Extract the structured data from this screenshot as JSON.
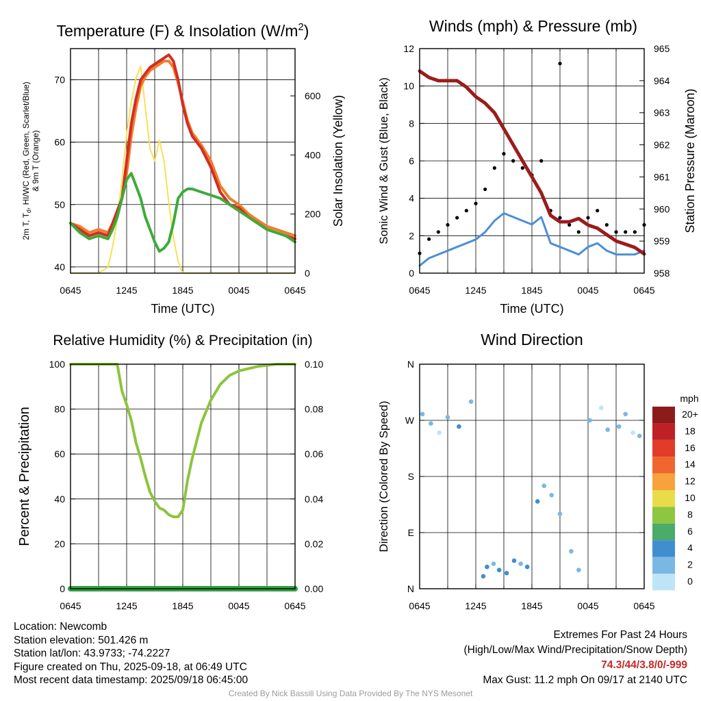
{
  "chart_data": [
    {
      "type": "line",
      "title": "Temperature (F) & Insolation (W/m²)",
      "title_parts": {
        "main": "Temperature (F) & Insolation (W/m",
        "sup": "2",
        "end": ")"
      },
      "xlabel": "Time (UTC)",
      "ylabel": "2m T, Td, HI/WC (Red, Green, Scarlet/Blue) & 9m T (Orange)",
      "ylabel_parts": {
        "line1_a": "2m T, T",
        "line1_sub": "d",
        "line1_b": ", HI/WC (Red, Green, Scarlet/Blue)",
        "line2": "& 9m T (Orange)"
      },
      "ylabel_right": "Solar Insolation (Yellow)",
      "x_ticks": [
        "0645",
        "1245",
        "1845",
        "0045",
        "0645"
      ],
      "y_ticks": [
        "40",
        "50",
        "60",
        "70"
      ],
      "y_ticks_right": [
        "0",
        "200",
        "400",
        "600"
      ],
      "ylim": [
        39,
        75
      ],
      "ylim_right": [
        0,
        760
      ],
      "grid": true,
      "x": [
        0,
        1,
        2,
        3,
        4,
        4.5,
        5,
        5.5,
        6,
        6.5,
        7,
        7.5,
        8,
        8.5,
        9,
        9.5,
        10,
        10.5,
        11,
        11.5,
        12,
        12.5,
        13,
        14,
        15,
        16,
        17,
        18,
        19,
        20,
        21,
        22,
        23,
        24
      ],
      "series": [
        {
          "color": "#d42d22",
          "values": [
            47,
            46,
            45,
            45.5,
            45,
            47,
            49,
            51,
            57,
            63,
            67,
            70,
            71,
            72,
            72.5,
            73,
            73.5,
            74,
            73,
            70,
            66,
            63,
            61,
            59,
            56,
            52,
            50,
            49.5,
            48,
            47,
            46,
            45.5,
            45,
            44.5
          ]
        },
        {
          "color": "#f07d2c",
          "values": [
            47,
            46.5,
            45.5,
            46,
            45.5,
            47,
            48.5,
            51,
            55,
            61,
            65.5,
            69,
            70.5,
            71.5,
            72,
            72.5,
            73,
            73,
            72,
            69.5,
            66.5,
            63.5,
            61.5,
            59.5,
            57,
            53,
            51,
            50,
            48.5,
            47.5,
            46.5,
            46,
            45.5,
            45
          ]
        },
        {
          "color": "#3cab3a",
          "values": [
            47,
            45.5,
            44.5,
            45,
            44.5,
            46,
            48,
            51,
            54,
            55,
            53,
            51,
            48,
            46,
            44,
            42.5,
            43,
            44,
            47,
            51,
            52,
            52.5,
            52.5,
            52,
            51.5,
            51,
            50,
            49,
            48,
            47,
            46,
            45.5,
            45,
            44
          ]
        },
        {
          "color": "#f7e154",
          "values": [
            0,
            0,
            0,
            0,
            20,
            90,
            180,
            320,
            470,
            580,
            660,
            700,
            560,
            420,
            380,
            450,
            380,
            240,
            120,
            40,
            0,
            0,
            0,
            0,
            0,
            0,
            0,
            0,
            0,
            0,
            0,
            0,
            0,
            0
          ],
          "axis": "right"
        }
      ]
    },
    {
      "type": "line",
      "title": "Winds (mph) & Pressure (mb)",
      "xlabel": "Time (UTC)",
      "ylabel": "Sonic Wind & Gust (Blue, Black)",
      "ylabel_right": "Station Pressure (Maroon)",
      "x_ticks": [
        "0645",
        "1245",
        "1845",
        "0045",
        "0645"
      ],
      "y_ticks": [
        "0",
        "2",
        "4",
        "6",
        "8",
        "10",
        "12"
      ],
      "y_ticks_right": [
        "958",
        "959",
        "960",
        "961",
        "962",
        "963",
        "964",
        "965"
      ],
      "ylim": [
        0,
        12
      ],
      "ylim_right": [
        958,
        965
      ],
      "grid": true,
      "max_gust": 11.2,
      "x": [
        0,
        1,
        2,
        3,
        4,
        5,
        6,
        7,
        8,
        9,
        10,
        11,
        12,
        13,
        14,
        15,
        16,
        17,
        18,
        19,
        20,
        21,
        22,
        23,
        24
      ],
      "series": [
        {
          "color": "#4a90d4",
          "values": [
            0.4,
            0.8,
            1.0,
            1.2,
            1.4,
            1.6,
            1.8,
            2.2,
            2.8,
            3.2,
            3.0,
            2.8,
            2.6,
            3.0,
            1.6,
            1.4,
            1.2,
            1.0,
            1.4,
            1.6,
            1.2,
            1.0,
            1.0,
            1.0,
            1.2
          ]
        },
        {
          "color": "#9b1c1c",
          "values": [
            964.3,
            964.1,
            964.0,
            964.0,
            964.0,
            963.8,
            963.5,
            963.3,
            963.0,
            962.5,
            962.0,
            961.5,
            961.0,
            960.5,
            959.8,
            959.6,
            959.6,
            959.7,
            959.5,
            959.4,
            959.2,
            959.0,
            958.9,
            958.8,
            958.6
          ],
          "axis": "right"
        }
      ]
    },
    {
      "type": "line",
      "title": "Relative Humidity (%) & Precipitation (in)",
      "ylabel": "Percent & Precipitation",
      "x_ticks": [
        "0645",
        "1245",
        "1845",
        "0045",
        "0645"
      ],
      "y_ticks": [
        "0",
        "20",
        "40",
        "60",
        "80",
        "100"
      ],
      "y_ticks_right": [
        "0.00",
        "0.02",
        "0.04",
        "0.06",
        "0.08",
        "0.10"
      ],
      "ylim": [
        0,
        100
      ],
      "ylim_right": [
        0,
        0.1
      ],
      "grid": true,
      "x": [
        0,
        1,
        2,
        3,
        4,
        5,
        5.5,
        6,
        6.5,
        7,
        7.5,
        8,
        8.5,
        9,
        9.5,
        10,
        10.5,
        11,
        11.5,
        12,
        12.5,
        13,
        13.5,
        14,
        15,
        16,
        17,
        18,
        19,
        20,
        21,
        22,
        23,
        24
      ],
      "series": [
        {
          "color": "#8cc43c",
          "values": [
            100,
            100,
            100,
            100,
            100,
            100,
            88,
            82,
            75,
            65,
            58,
            50,
            43,
            39,
            36,
            35,
            33,
            32,
            32,
            35,
            48,
            58,
            66,
            74,
            84,
            91,
            95,
            97,
            98,
            99,
            99.5,
            100,
            100,
            100
          ]
        },
        {
          "color": "#2ea043",
          "values": [
            0,
            0,
            0,
            0,
            0,
            0,
            0,
            0,
            0,
            0,
            0,
            0,
            0,
            0,
            0,
            0,
            0,
            0,
            0,
            0,
            0,
            0,
            0,
            0,
            0,
            0,
            0,
            0,
            0,
            0,
            0,
            0,
            0,
            0
          ],
          "axis": "right"
        }
      ]
    },
    {
      "type": "scatter",
      "title": "Wind Direction",
      "ylabel": "Direction (Colored By Speed)",
      "x_ticks": [
        "0645",
        "1245",
        "1845",
        "0045",
        "0645"
      ],
      "y_ticks": [
        "N",
        "E",
        "S",
        "W",
        "N"
      ],
      "ylim": [
        0,
        360
      ],
      "grid": true,
      "legend_title": "mph",
      "legend_labels": [
        "20+",
        "18",
        "16",
        "14",
        "12",
        "10",
        "8",
        "6",
        "4",
        "2",
        "0"
      ],
      "legend_colors": [
        "#8c1c1c",
        "#bf2026",
        "#e23b28",
        "#f0662f",
        "#f7a23c",
        "#e9dc4b",
        "#8dc63f",
        "#4aab6a",
        "#3f8fcf",
        "#7ab8e4",
        "#bde5f7"
      ],
      "x": [
        0.3,
        1.2,
        2.1,
        3.0,
        4.2,
        5.5,
        6.8,
        7.2,
        7.9,
        8.5,
        9.3,
        10.1,
        10.8,
        11.5,
        12.6,
        13.3,
        14.1,
        15.0,
        16.2,
        17.0,
        18.2,
        19.4,
        20.1,
        21.3,
        22.0,
        22.8,
        23.5
      ],
      "y": [
        280,
        265,
        250,
        275,
        260,
        300,
        20,
        35,
        40,
        30,
        25,
        45,
        40,
        35,
        140,
        165,
        150,
        120,
        60,
        30,
        270,
        290,
        255,
        260,
        280,
        250,
        245
      ],
      "speed": [
        1,
        1,
        0,
        2,
        3,
        1,
        3,
        4,
        2,
        3,
        4,
        3,
        2,
        3,
        4,
        2,
        1,
        1,
        1,
        2,
        1,
        0,
        1,
        1,
        1,
        0,
        1
      ]
    }
  ],
  "footer": {
    "location": "Location: Newcomb",
    "elevation": "Station elevation: 501.426 m",
    "latlon": "Station lat/lon: 43.9733; -74.2227",
    "created": "Figure created on Thu, 2025-09-18, at 06:49 UTC",
    "recent": "Most recent data timestamp: 2025/09/18 06:45:00",
    "extremes_title": "Extremes For Past 24 Hours",
    "extremes_desc": "(High/Low/Max Wind/Precipitation/Snow Depth)",
    "extremes_values": "74.3/44/3.8/0/-999",
    "max_gust": "Max Gust: 11.2 mph On 09/17 at 2140 UTC",
    "credit": "Created By Nick Bassill Using Data Provided By The NYS Mesonet"
  }
}
